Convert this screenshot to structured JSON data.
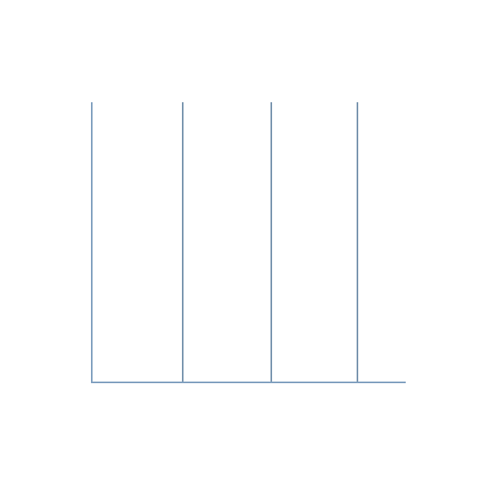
{
  "chart_data": {
    "type": "line",
    "title": "",
    "xlabel": "",
    "ylabel": "",
    "series": [
      {
        "values": []
      }
    ],
    "vertical_line_count": 3,
    "axis_color": "#7f9fbf",
    "line_color": "#1f4e79",
    "grid": false,
    "legend": "none"
  }
}
